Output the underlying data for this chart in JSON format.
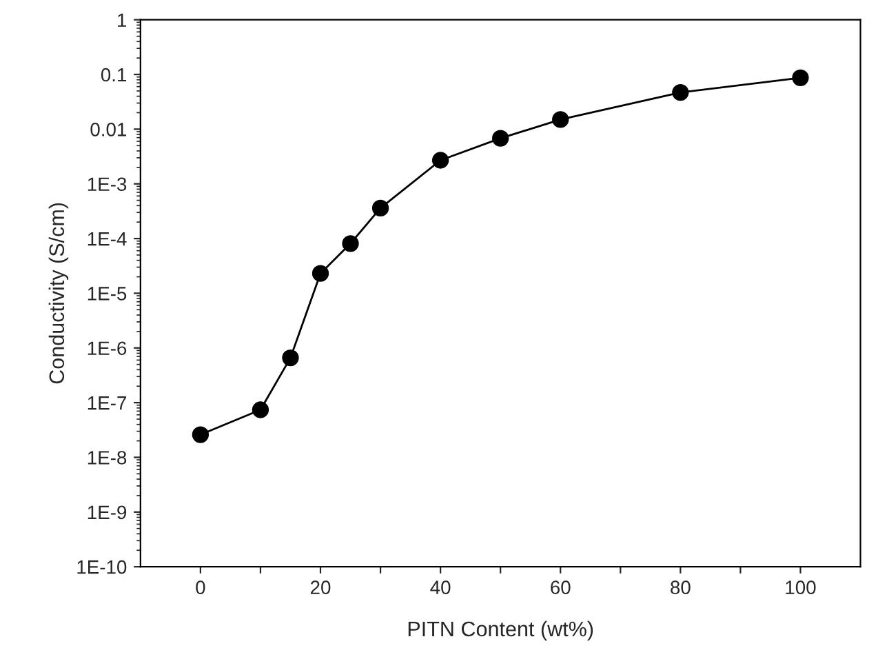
{
  "chart_data": {
    "type": "line",
    "xlabel": "PITN Content (wt%)",
    "ylabel": "Conductivity (S/cm)",
    "x": [
      0,
      10,
      15,
      20,
      25,
      30,
      40,
      50,
      60,
      80,
      100
    ],
    "series": [
      {
        "color": "#000000",
        "values": [
          2.6e-08,
          7.4e-08,
          6.6e-07,
          2.3e-05,
          8.1e-05,
          0.00036,
          0.0027,
          0.0068,
          0.015,
          0.047,
          0.087
        ]
      }
    ],
    "log": "y",
    "marker": "circle",
    "line_style": "solid",
    "grid": false,
    "legend": false,
    "xlim": [
      -10,
      110
    ],
    "xticks": [
      0,
      {
        "value": 10,
        "label": null
      },
      20,
      {
        "value": 30,
        "label": null
      },
      40,
      {
        "value": 50,
        "label": null
      },
      60,
      {
        "value": 70,
        "label": null
      },
      80,
      {
        "value": 90,
        "label": null
      },
      100
    ],
    "ylim": [
      1e-10,
      1
    ],
    "yticks": [
      {
        "value": 1e-10,
        "label": "1E-10"
      },
      {
        "value": 1e-09,
        "label": "1E-9"
      },
      {
        "value": 1e-08,
        "label": "1E-8"
      },
      {
        "value": 1e-07,
        "label": "1E-7"
      },
      {
        "value": 1e-06,
        "label": "1E-6"
      },
      {
        "value": 1e-05,
        "label": "1E-5"
      },
      {
        "value": 0.0001,
        "label": "1E-4"
      },
      {
        "value": 0.001,
        "label": "1E-3"
      },
      {
        "value": 0.01,
        "label": "0.01"
      },
      {
        "value": 0.1,
        "label": "0.1"
      },
      {
        "value": 1,
        "label": "1"
      }
    ]
  }
}
